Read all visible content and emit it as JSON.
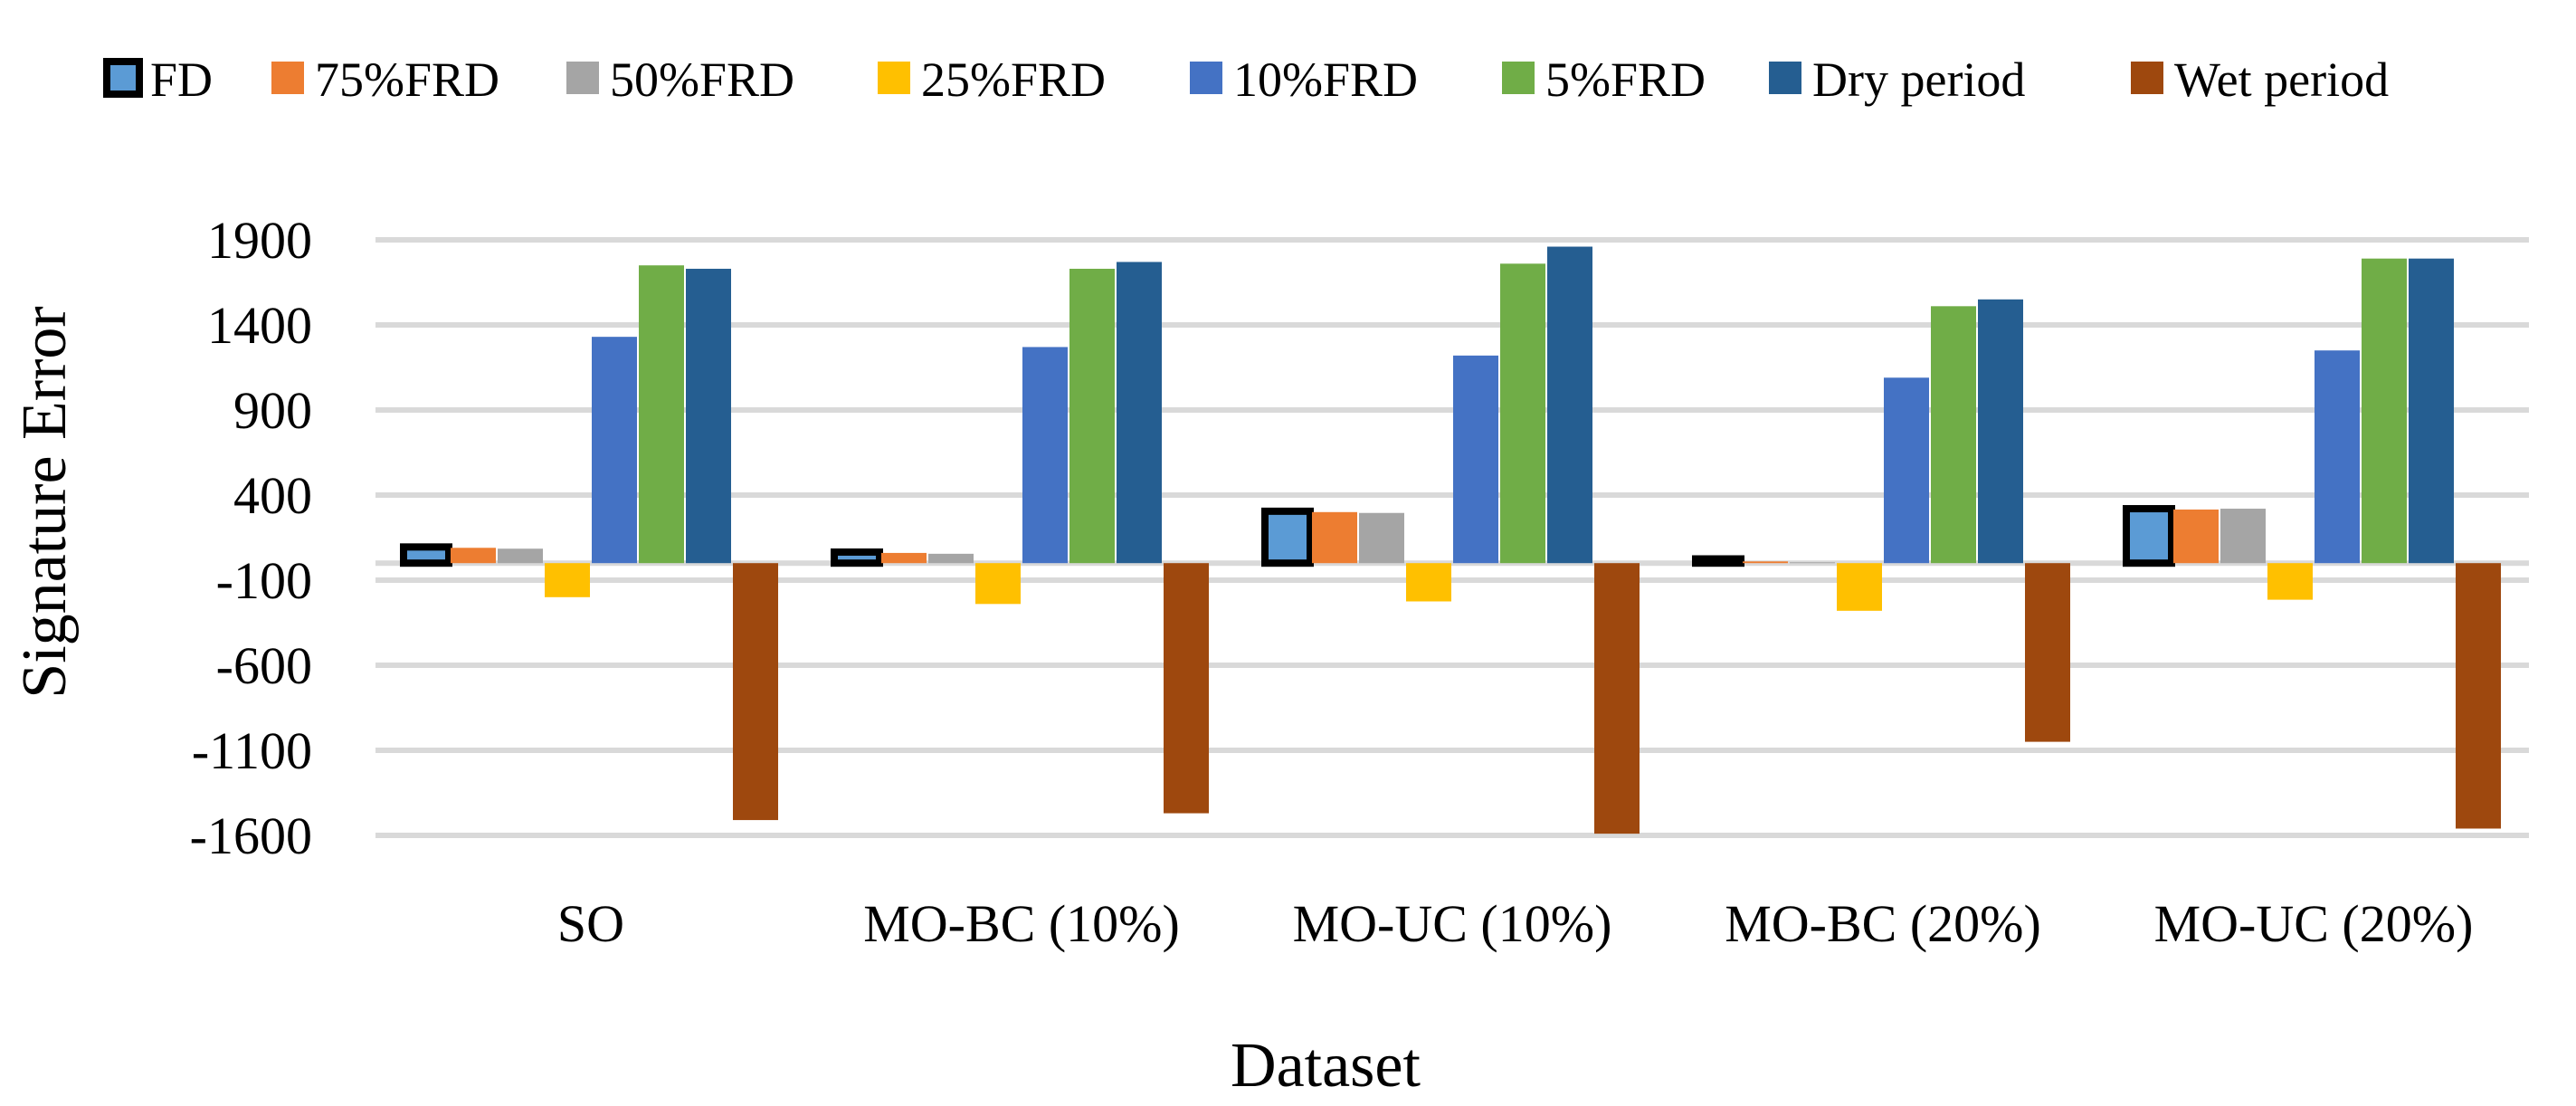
{
  "chart_data": {
    "type": "bar",
    "title": "",
    "xlabel": "Dataset",
    "ylabel": "Signature Error",
    "ylim": [
      -1600,
      1900
    ],
    "yticks": [
      1900,
      1400,
      900,
      400,
      -100,
      -600,
      -1100,
      -1600
    ],
    "grid": true,
    "legend_position": "top",
    "categories": [
      "SO",
      "MO-BC (10%)",
      "MO-UC (10%)",
      "MO-BC (20%)",
      "MO-UC (20%)"
    ],
    "series": [
      {
        "name": "FD",
        "color": "#5b9bd5",
        "edge": "#000000",
        "values": [
          95,
          65,
          305,
          25,
          320
        ]
      },
      {
        "name": "75%FRD",
        "color": "#ed7d31",
        "values": [
          90,
          60,
          300,
          10,
          315
        ]
      },
      {
        "name": "50%FRD",
        "color": "#a5a5a5",
        "values": [
          85,
          55,
          295,
          5,
          320
        ]
      },
      {
        "name": "25%FRD",
        "color": "#ffc000",
        "values": [
          -200,
          -240,
          -225,
          -280,
          -215
        ]
      },
      {
        "name": "10%FRD",
        "color": "#4472c4",
        "values": [
          1330,
          1270,
          1220,
          1090,
          1250
        ]
      },
      {
        "name": "5%FRD",
        "color": "#70ad47",
        "values": [
          1750,
          1730,
          1760,
          1510,
          1790
        ]
      },
      {
        "name": "Dry period",
        "color": "#255e91",
        "values": [
          1730,
          1770,
          1860,
          1550,
          1790
        ]
      },
      {
        "name": "Wet period",
        "color": "#9e480e",
        "values": [
          -1510,
          -1470,
          -1590,
          -1050,
          -1560
        ]
      }
    ]
  }
}
